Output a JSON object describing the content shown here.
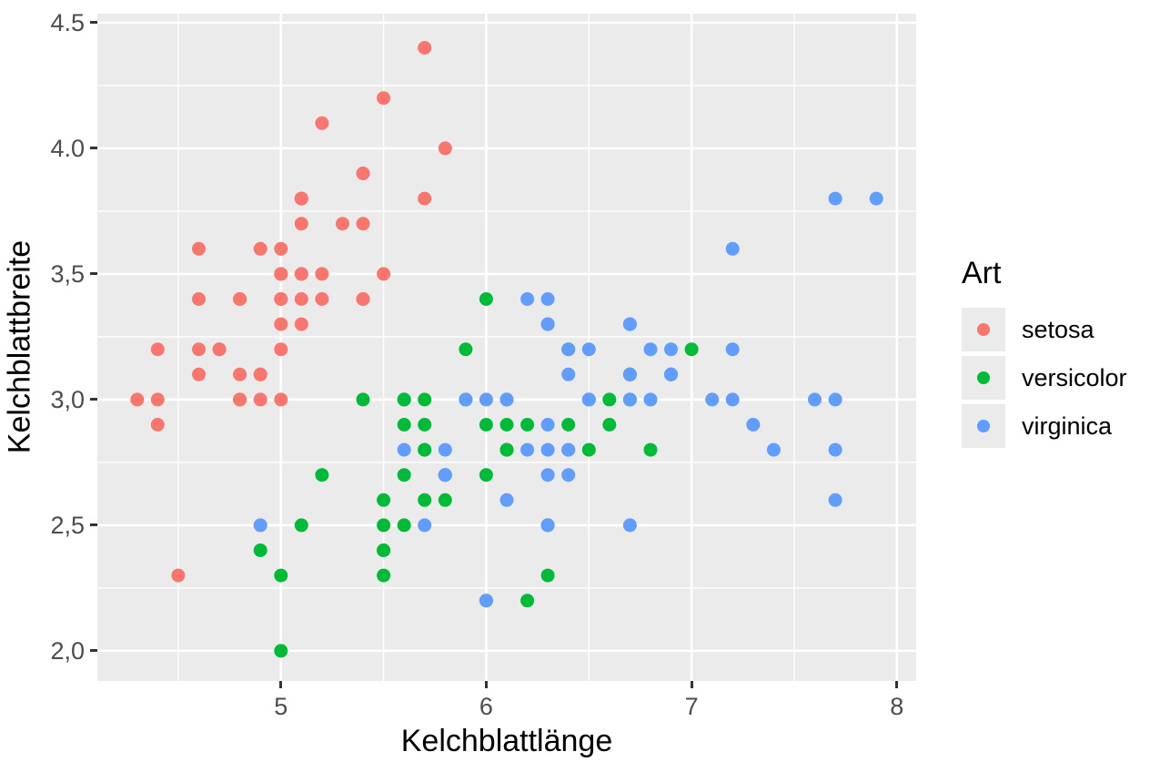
{
  "chart_data": {
    "type": "scatter",
    "title": "",
    "xlabel": "Kelchblattlänge",
    "ylabel": "Kelchblattbreite",
    "legend_title": "Art",
    "legend_position": "right",
    "xlim": [
      4.106,
      8.094
    ],
    "ylim": [
      1.88,
      4.536
    ],
    "x_ticks": [
      {
        "v": 5,
        "label": "5"
      },
      {
        "v": 6,
        "label": "6"
      },
      {
        "v": 7,
        "label": "7"
      },
      {
        "v": 8,
        "label": "8"
      }
    ],
    "y_ticks": [
      {
        "v": 4.5,
        "label": "4.5"
      },
      {
        "v": 4.0,
        "label": "4.0"
      },
      {
        "v": 3.5,
        "label": "3,5"
      },
      {
        "v": 3.0,
        "label": "3,0"
      },
      {
        "v": 2.5,
        "label": "2,5"
      },
      {
        "v": 2.0,
        "label": "2,0"
      }
    ],
    "x_minor_ticks": [
      4.5,
      5.5,
      6.5,
      7.5
    ],
    "y_minor_ticks": [
      2.25,
      2.75,
      3.25,
      3.75,
      4.25
    ],
    "grid": true,
    "panel_bg": "#EBEBEB",
    "grid_color": "#FFFFFF",
    "tick_label_color": "#4D4D4D",
    "tick_mark_color": "#333333",
    "series": [
      {
        "name": "setosa",
        "color": "#F8766D",
        "points": [
          [
            5.1,
            3.5
          ],
          [
            4.9,
            3.0
          ],
          [
            4.7,
            3.2
          ],
          [
            4.6,
            3.1
          ],
          [
            5.0,
            3.6
          ],
          [
            5.4,
            3.9
          ],
          [
            4.6,
            3.4
          ],
          [
            5.0,
            3.4
          ],
          [
            4.4,
            2.9
          ],
          [
            4.9,
            3.1
          ],
          [
            5.4,
            3.7
          ],
          [
            4.8,
            3.4
          ],
          [
            4.8,
            3.0
          ],
          [
            4.3,
            3.0
          ],
          [
            5.8,
            4.0
          ],
          [
            5.7,
            4.4
          ],
          [
            5.4,
            3.9
          ],
          [
            5.1,
            3.5
          ],
          [
            5.7,
            3.8
          ],
          [
            5.1,
            3.8
          ],
          [
            5.4,
            3.4
          ],
          [
            5.1,
            3.7
          ],
          [
            4.6,
            3.6
          ],
          [
            5.1,
            3.3
          ],
          [
            4.8,
            3.4
          ],
          [
            5.0,
            3.0
          ],
          [
            5.0,
            3.4
          ],
          [
            5.2,
            3.5
          ],
          [
            5.2,
            3.4
          ],
          [
            4.7,
            3.2
          ],
          [
            4.8,
            3.1
          ],
          [
            5.4,
            3.4
          ],
          [
            5.2,
            4.1
          ],
          [
            5.5,
            4.2
          ],
          [
            4.9,
            3.1
          ],
          [
            5.0,
            3.2
          ],
          [
            5.5,
            3.5
          ],
          [
            4.9,
            3.6
          ],
          [
            4.4,
            3.0
          ],
          [
            5.1,
            3.4
          ],
          [
            5.0,
            3.5
          ],
          [
            4.5,
            2.3
          ],
          [
            4.4,
            3.2
          ],
          [
            5.0,
            3.5
          ],
          [
            5.1,
            3.8
          ],
          [
            4.8,
            3.0
          ],
          [
            5.1,
            3.8
          ],
          [
            4.6,
            3.2
          ],
          [
            5.3,
            3.7
          ],
          [
            5.0,
            3.3
          ]
        ]
      },
      {
        "name": "versicolor",
        "color": "#00BA38",
        "points": [
          [
            7.0,
            3.2
          ],
          [
            6.4,
            3.2
          ],
          [
            6.9,
            3.1
          ],
          [
            5.5,
            2.3
          ],
          [
            6.5,
            2.8
          ],
          [
            5.7,
            2.8
          ],
          [
            6.3,
            3.3
          ],
          [
            4.9,
            2.4
          ],
          [
            6.6,
            2.9
          ],
          [
            5.2,
            2.7
          ],
          [
            5.0,
            2.0
          ],
          [
            5.9,
            3.0
          ],
          [
            6.0,
            2.2
          ],
          [
            6.1,
            2.9
          ],
          [
            5.6,
            2.9
          ],
          [
            6.7,
            3.1
          ],
          [
            5.6,
            3.0
          ],
          [
            5.8,
            2.7
          ],
          [
            6.2,
            2.2
          ],
          [
            5.6,
            2.5
          ],
          [
            5.9,
            3.2
          ],
          [
            6.1,
            2.8
          ],
          [
            6.3,
            2.5
          ],
          [
            6.1,
            2.8
          ],
          [
            6.4,
            2.9
          ],
          [
            6.6,
            3.0
          ],
          [
            6.8,
            2.8
          ],
          [
            6.7,
            3.0
          ],
          [
            6.0,
            2.9
          ],
          [
            5.7,
            2.6
          ],
          [
            5.5,
            2.4
          ],
          [
            5.5,
            2.4
          ],
          [
            5.8,
            2.7
          ],
          [
            6.0,
            2.7
          ],
          [
            5.4,
            3.0
          ],
          [
            6.0,
            3.4
          ],
          [
            6.7,
            3.1
          ],
          [
            6.3,
            2.3
          ],
          [
            5.6,
            3.0
          ],
          [
            5.5,
            2.5
          ],
          [
            5.5,
            2.6
          ],
          [
            6.1,
            3.0
          ],
          [
            5.8,
            2.6
          ],
          [
            5.0,
            2.3
          ],
          [
            5.6,
            2.7
          ],
          [
            5.7,
            3.0
          ],
          [
            5.7,
            2.9
          ],
          [
            6.2,
            2.9
          ],
          [
            5.1,
            2.5
          ],
          [
            5.7,
            2.8
          ]
        ]
      },
      {
        "name": "virginica",
        "color": "#619CFF",
        "points": [
          [
            6.3,
            3.3
          ],
          [
            5.8,
            2.7
          ],
          [
            7.1,
            3.0
          ],
          [
            6.3,
            2.9
          ],
          [
            6.5,
            3.0
          ],
          [
            7.6,
            3.0
          ],
          [
            4.9,
            2.5
          ],
          [
            7.3,
            2.9
          ],
          [
            6.7,
            2.5
          ],
          [
            7.2,
            3.6
          ],
          [
            6.5,
            3.2
          ],
          [
            6.4,
            2.7
          ],
          [
            6.8,
            3.0
          ],
          [
            5.7,
            2.5
          ],
          [
            5.8,
            2.8
          ],
          [
            6.4,
            3.2
          ],
          [
            6.5,
            3.0
          ],
          [
            7.7,
            3.8
          ],
          [
            7.7,
            2.6
          ],
          [
            6.0,
            2.2
          ],
          [
            6.9,
            3.2
          ],
          [
            5.6,
            2.8
          ],
          [
            7.7,
            2.8
          ],
          [
            6.3,
            2.7
          ],
          [
            6.7,
            3.3
          ],
          [
            7.2,
            3.2
          ],
          [
            6.2,
            2.8
          ],
          [
            6.1,
            3.0
          ],
          [
            6.4,
            2.8
          ],
          [
            7.2,
            3.0
          ],
          [
            7.4,
            2.8
          ],
          [
            7.9,
            3.8
          ],
          [
            6.4,
            2.8
          ],
          [
            6.3,
            2.8
          ],
          [
            6.1,
            2.6
          ],
          [
            7.7,
            3.0
          ],
          [
            6.3,
            3.4
          ],
          [
            6.4,
            3.1
          ],
          [
            6.0,
            3.0
          ],
          [
            6.9,
            3.1
          ],
          [
            6.7,
            3.1
          ],
          [
            6.9,
            3.1
          ],
          [
            5.8,
            2.7
          ],
          [
            6.8,
            3.2
          ],
          [
            6.7,
            3.3
          ],
          [
            6.7,
            3.0
          ],
          [
            6.3,
            2.5
          ],
          [
            6.5,
            3.0
          ],
          [
            6.2,
            3.4
          ],
          [
            5.9,
            3.0
          ]
        ]
      }
    ]
  },
  "legend": {
    "title": "Art",
    "items": [
      {
        "label": "setosa",
        "color": "#F8766D"
      },
      {
        "label": "versicolor",
        "color": "#00BA38"
      },
      {
        "label": "virginica",
        "color": "#619CFF"
      }
    ]
  }
}
